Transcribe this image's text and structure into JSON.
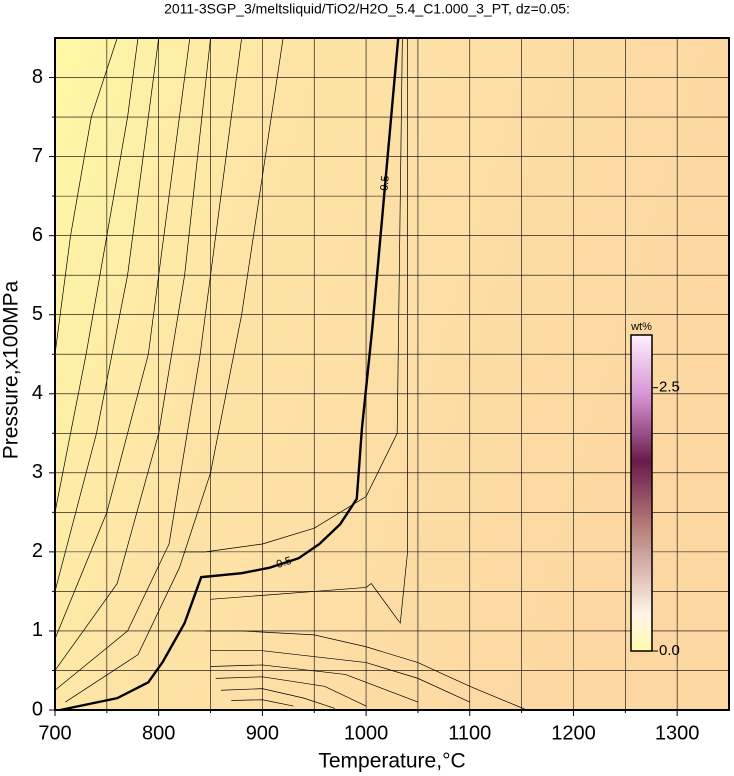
{
  "chart_data": {
    "type": "contour",
    "title": "2011-3SGP_3/meltsliquid/TiO2/H2O_5.4_C1.000_3_PT, dz=0.05:",
    "x_label": "Temperature,°C",
    "y_label": "Pressure,x100MPa",
    "xlim": [
      700,
      1350
    ],
    "ylim": [
      0,
      8.5
    ],
    "xticks": [
      700,
      800,
      900,
      1000,
      1100,
      1200,
      1300
    ],
    "yticks": [
      0,
      1,
      2,
      3,
      4,
      5,
      6,
      7,
      8
    ],
    "xminorticks": [
      750,
      850,
      950,
      1050,
      1150,
      1250
    ],
    "yminorticks": [
      0.5,
      1.5,
      2.5,
      3.5,
      4.5,
      5.5,
      6.5,
      7.5
    ],
    "grid": true,
    "lines": [
      {
        "x": [
          705,
          760,
          790,
          804,
          825,
          841,
          880,
          907,
          935,
          955,
          975,
          991,
          996,
          1006,
          1031
        ],
        "y": [
          0,
          0.15,
          0.35,
          0.61,
          1.1,
          1.68,
          1.73,
          1.8,
          1.92,
          2.1,
          2.35,
          2.67,
          3.56,
          4.83,
          8.5
        ],
        "label": "0.5",
        "bold": true
      },
      {
        "x": [
          700,
          715,
          735,
          760
        ],
        "y": [
          4.5,
          6,
          7.5,
          8.5
        ]
      },
      {
        "x": [
          700,
          730,
          750,
          770,
          780
        ],
        "y": [
          2.5,
          4.5,
          6,
          7.5,
          8.5
        ]
      },
      {
        "x": [
          700,
          740,
          770,
          790,
          800
        ],
        "y": [
          1.5,
          3.5,
          5.5,
          7.5,
          8.5
        ]
      },
      {
        "x": [
          700,
          750,
          790,
          810,
          830
        ],
        "y": [
          0.9,
          2.5,
          4.5,
          6.5,
          8.5
        ]
      },
      {
        "x": [
          700,
          760,
          800,
          825,
          850
        ],
        "y": [
          0.5,
          1.6,
          3.5,
          5.5,
          8.5
        ]
      },
      {
        "x": [
          700,
          770,
          810,
          840,
          880
        ],
        "y": [
          0.25,
          1.0,
          2.1,
          4.5,
          8.5
        ]
      },
      {
        "x": [
          710,
          780,
          820,
          850,
          880,
          920
        ],
        "y": [
          0.1,
          0.7,
          1.8,
          3,
          5,
          8.5
        ]
      },
      {
        "x": [
          820,
          845,
          900,
          950,
          1000,
          1030,
          1035
        ],
        "y": [
          2.0,
          2.0,
          2.1,
          2.3,
          2.7,
          3.5,
          8.5
        ]
      },
      {
        "x": [
          850,
          900,
          950,
          1000,
          1005,
          1030,
          1033,
          1040,
          1040
        ],
        "y": [
          1.4,
          1.45,
          1.5,
          1.55,
          1.6,
          1.15,
          1.1,
          2,
          8.5
        ]
      },
      {
        "x": [
          845,
          880,
          950,
          1000,
          1050,
          1100,
          1155
        ],
        "y": [
          1.0,
          1.0,
          0.95,
          0.8,
          0.6,
          0.3,
          0
        ]
      },
      {
        "x": [
          850,
          900,
          1000,
          1050,
          1100
        ],
        "y": [
          0.75,
          0.75,
          0.6,
          0.4,
          0.1
        ]
      },
      {
        "x": [
          850,
          900,
          980,
          1050
        ],
        "y": [
          0.55,
          0.57,
          0.45,
          0.1
        ]
      },
      {
        "x": [
          855,
          900,
          960,
          1000
        ],
        "y": [
          0.4,
          0.42,
          0.3,
          0.05
        ]
      },
      {
        "x": [
          860,
          900,
          940,
          970
        ],
        "y": [
          0.25,
          0.27,
          0.15,
          0.02
        ]
      },
      {
        "x": [
          870,
          900,
          930
        ],
        "y": [
          0.12,
          0.13,
          0.05
        ]
      }
    ],
    "colorbar": {
      "label": "wt%",
      "lim": [
        0,
        3
      ],
      "ticks": [
        {
          "value": 0,
          "label": "0.0"
        },
        2.5
      ]
    }
  }
}
